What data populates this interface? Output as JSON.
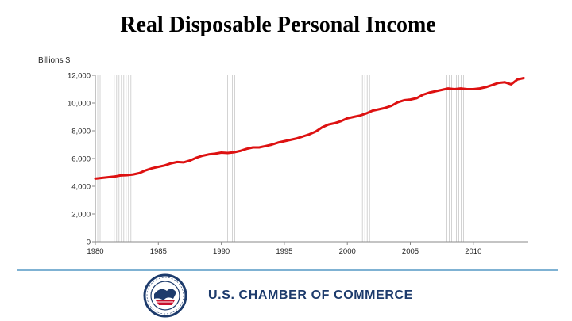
{
  "chart_data": {
    "type": "line",
    "title": "Real Disposable Personal Income",
    "ylabel": "Billions $",
    "xlabel": "",
    "xlim": [
      1980,
      2014.3
    ],
    "ylim": [
      0,
      12000
    ],
    "x_ticks": [
      1980,
      1985,
      1990,
      1995,
      2000,
      2005,
      2010
    ],
    "y_ticks": [
      0,
      2000,
      4000,
      6000,
      8000,
      10000,
      12000
    ],
    "y_tick_labels": [
      "0",
      "2,000",
      "4,000",
      "6,000",
      "8,000",
      "10,000",
      "12,000"
    ],
    "line_color": "#dd1111",
    "recession_bar_color": "#c8c8c8",
    "grid": false,
    "recessions": [
      [
        1980.0,
        1980.5
      ],
      [
        1981.5,
        1982.9
      ],
      [
        1990.5,
        1991.2
      ],
      [
        2001.2,
        2001.9
      ],
      [
        2007.9,
        2009.5
      ]
    ],
    "series": [
      {
        "x": [
          1980.0,
          1980.5,
          1981.0,
          1981.5,
          1982.0,
          1982.5,
          1983.0,
          1983.5,
          1984.0,
          1984.5,
          1985.0,
          1985.5,
          1986.0,
          1986.5,
          1987.0,
          1987.5,
          1988.0,
          1988.5,
          1989.0,
          1989.5,
          1990.0,
          1990.5,
          1991.0,
          1991.5,
          1992.0,
          1992.5,
          1993.0,
          1993.5,
          1994.0,
          1994.5,
          1995.0,
          1995.5,
          1996.0,
          1996.5,
          1997.0,
          1997.5,
          1998.0,
          1998.5,
          1999.0,
          1999.5,
          2000.0,
          2000.5,
          2001.0,
          2001.5,
          2002.0,
          2002.5,
          2003.0,
          2003.5,
          2004.0,
          2004.5,
          2005.0,
          2005.5,
          2006.0,
          2006.5,
          2007.0,
          2007.5,
          2008.0,
          2008.5,
          2009.0,
          2009.5,
          2010.0,
          2010.5,
          2011.0,
          2011.5,
          2012.0,
          2012.5,
          2013.0,
          2013.5,
          2014.0
        ],
        "values": [
          4550,
          4600,
          4650,
          4700,
          4780,
          4800,
          4850,
          4950,
          5150,
          5300,
          5400,
          5500,
          5650,
          5750,
          5720,
          5850,
          6050,
          6200,
          6300,
          6350,
          6430,
          6400,
          6450,
          6550,
          6700,
          6800,
          6800,
          6900,
          7000,
          7150,
          7250,
          7350,
          7450,
          7600,
          7750,
          7950,
          8250,
          8450,
          8550,
          8700,
          8900,
          9000,
          9100,
          9250,
          9450,
          9550,
          9650,
          9800,
          10050,
          10200,
          10250,
          10350,
          10600,
          10750,
          10850,
          10950,
          11050,
          11000,
          11050,
          11000,
          11000,
          11050,
          11150,
          11300,
          11450,
          11500,
          11350,
          11700,
          11800
        ]
      }
    ]
  },
  "branding": {
    "org_name": "U.S. CHAMBER OF COMMERCE",
    "seal_colors": [
      "#1d3b6c",
      "#c8102e",
      "#ffffff"
    ]
  }
}
